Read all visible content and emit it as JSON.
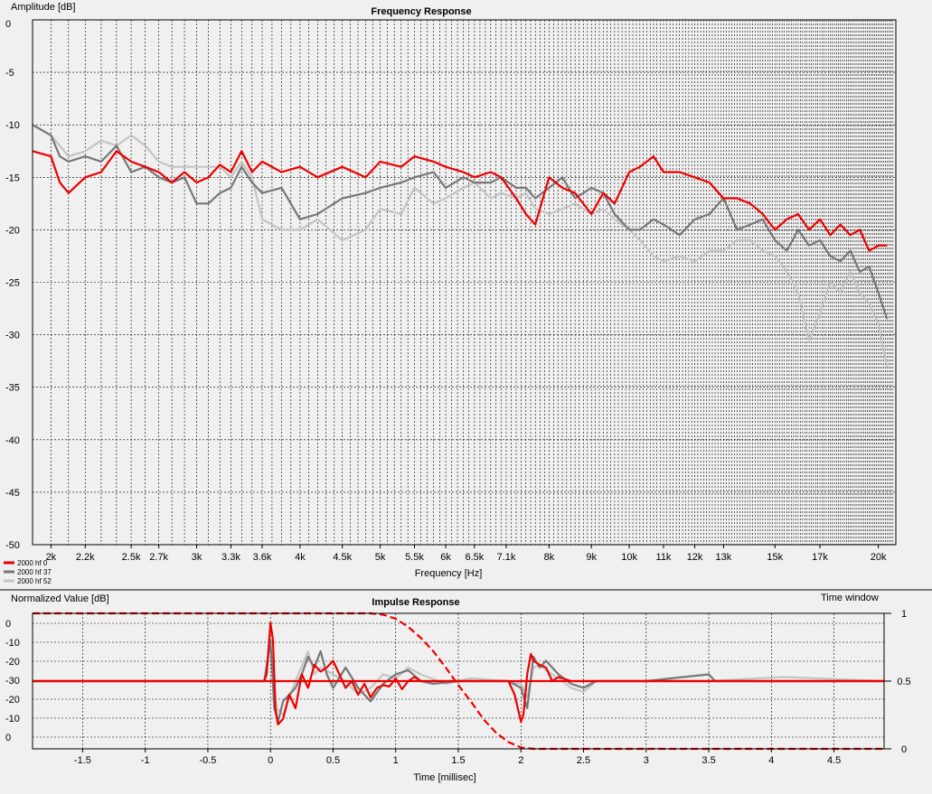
{
  "freq": {
    "title": "Frequency Response",
    "ylabel": "Amplitude [dB]",
    "xlabel": "Frequency [Hz]",
    "yticks": [
      "0",
      "-5",
      "-10",
      "-15",
      "-20",
      "-25",
      "-30",
      "-35",
      "-40",
      "-45",
      "-50"
    ],
    "xticks": [
      {
        "f": 2000,
        "label": "2k"
      },
      {
        "f": 2200,
        "label": "2.2k"
      },
      {
        "f": 2500,
        "label": "2.5k"
      },
      {
        "f": 2700,
        "label": "2.7k"
      },
      {
        "f": 3000,
        "label": "3k"
      },
      {
        "f": 3300,
        "label": "3.3k"
      },
      {
        "f": 3600,
        "label": "3.6k"
      },
      {
        "f": 4000,
        "label": "4k"
      },
      {
        "f": 4500,
        "label": "4.5k"
      },
      {
        "f": 5000,
        "label": "5k"
      },
      {
        "f": 5500,
        "label": "5.5k"
      },
      {
        "f": 6000,
        "label": "6k"
      },
      {
        "f": 6500,
        "label": "6.5k"
      },
      {
        "f": 7100,
        "label": "7.1k"
      },
      {
        "f": 8000,
        "label": "8k"
      },
      {
        "f": 9000,
        "label": "9k"
      },
      {
        "f": 10000,
        "label": "10k"
      },
      {
        "f": 11000,
        "label": "11k"
      },
      {
        "f": 12000,
        "label": "12k"
      },
      {
        "f": 13000,
        "label": "13k"
      },
      {
        "f": 15000,
        "label": "15k"
      },
      {
        "f": 17000,
        "label": "17k"
      },
      {
        "f": 20000,
        "label": "20k"
      }
    ],
    "legend": [
      "2000 hf 0",
      "2000 hf 37",
      "2000 hf 52"
    ]
  },
  "impulse": {
    "title": "Impulse Response",
    "ylabel": "Normalized Value [dB]",
    "right_label": "Time window",
    "xlabel": "Time [millisec]",
    "yticks": [
      "0",
      "-10",
      "-20",
      "-30",
      "-20",
      "-10",
      "0"
    ],
    "xticks": [
      "-1.5",
      "-1",
      "-0.5",
      "0",
      "0.5",
      "1",
      "1.5",
      "2",
      "2.5",
      "3",
      "3.5",
      "4",
      "4.5"
    ],
    "right_ticks": [
      "1",
      "0.5",
      "0"
    ]
  },
  "chart_data": [
    {
      "type": "line",
      "title": "Frequency Response",
      "xlabel": "Frequency [Hz]",
      "ylabel": "Amplitude [dB]",
      "xscale": "log",
      "xlim": [
        1900,
        21000
      ],
      "ylim": [
        -50,
        0
      ],
      "grid": true,
      "legend_position": "bottom-left",
      "series": [
        {
          "name": "2000 hf 0",
          "color": "#ee0000",
          "x": [
            1900,
            2000,
            2050,
            2100,
            2200,
            2300,
            2400,
            2500,
            2600,
            2700,
            2800,
            2900,
            3000,
            3100,
            3200,
            3300,
            3400,
            3500,
            3600,
            3800,
            4000,
            4200,
            4500,
            4800,
            5000,
            5300,
            5500,
            5800,
            6000,
            6300,
            6500,
            6800,
            7000,
            7300,
            7500,
            7700,
            8000,
            8300,
            8600,
            9000,
            9300,
            9600,
            10000,
            10300,
            10700,
            11000,
            11500,
            12000,
            12500,
            13000,
            13500,
            14000,
            14500,
            15000,
            15500,
            16000,
            16500,
            17000,
            17500,
            18000,
            18500,
            19000,
            19500,
            20000,
            20500
          ],
          "y": [
            -12.5,
            -13,
            -15.5,
            -16.5,
            -15,
            -14.5,
            -12.5,
            -13.5,
            -14,
            -14.5,
            -15.5,
            -14.5,
            -15.5,
            -15,
            -13.8,
            -14.5,
            -12.5,
            -14.5,
            -13.5,
            -14.5,
            -14,
            -15,
            -14,
            -15,
            -13.5,
            -14,
            -13,
            -13.5,
            -14,
            -14.5,
            -15,
            -14.5,
            -15,
            -17,
            -18.5,
            -19.5,
            -15,
            -16,
            -16.5,
            -18.5,
            -16.5,
            -17.5,
            -14.5,
            -14,
            -13,
            -14.5,
            -14.5,
            -15,
            -15.5,
            -17,
            -17,
            -17.5,
            -18.5,
            -20,
            -19,
            -18.5,
            -20,
            -19,
            -20.5,
            -19.5,
            -20.5,
            -20,
            -22,
            -21.5,
            -21.5
          ]
        },
        {
          "name": "2000 hf 37",
          "color": "#777777",
          "x": [
            1900,
            2000,
            2050,
            2100,
            2200,
            2300,
            2400,
            2500,
            2600,
            2700,
            2800,
            2900,
            3000,
            3100,
            3200,
            3300,
            3400,
            3500,
            3600,
            3800,
            4000,
            4200,
            4500,
            4800,
            5000,
            5300,
            5500,
            5800,
            6000,
            6300,
            6500,
            6800,
            7000,
            7300,
            7500,
            7700,
            8000,
            8300,
            8600,
            9000,
            9300,
            9600,
            10000,
            10300,
            10700,
            11000,
            11500,
            12000,
            12500,
            13000,
            13500,
            14000,
            14500,
            15000,
            15500,
            16000,
            16500,
            17000,
            17500,
            18000,
            18500,
            19000,
            19500,
            20000,
            20500
          ],
          "y": [
            -10,
            -11,
            -13,
            -13.5,
            -13,
            -13.5,
            -12,
            -14.5,
            -14,
            -15,
            -15.5,
            -15,
            -17.5,
            -17.5,
            -16.5,
            -16,
            -14,
            -15.5,
            -16.5,
            -16,
            -19,
            -18.5,
            -17,
            -16.5,
            -16,
            -15.5,
            -15,
            -14.5,
            -16,
            -15,
            -15.5,
            -15.5,
            -15,
            -16,
            -16,
            -17,
            -16,
            -15,
            -17,
            -16,
            -16.5,
            -18.5,
            -20,
            -20,
            -19,
            -19.5,
            -20.5,
            -19,
            -18.5,
            -17,
            -20,
            -19.5,
            -19,
            -21,
            -22,
            -20,
            -21.5,
            -21,
            -22.5,
            -23,
            -22,
            -24,
            -23.5,
            -26,
            -28.5
          ]
        },
        {
          "name": "2000 hf 52",
          "color": "#c4c4c4",
          "x": [
            1900,
            2000,
            2050,
            2100,
            2200,
            2300,
            2400,
            2500,
            2600,
            2700,
            2800,
            2900,
            3000,
            3100,
            3200,
            3300,
            3400,
            3500,
            3600,
            3800,
            4000,
            4200,
            4500,
            4800,
            5000,
            5300,
            5500,
            5800,
            6000,
            6300,
            6500,
            6800,
            7000,
            7300,
            7500,
            7700,
            8000,
            8300,
            8600,
            9000,
            9300,
            9600,
            10000,
            10300,
            10700,
            11000,
            11500,
            12000,
            12500,
            13000,
            13500,
            14000,
            14500,
            15000,
            15500,
            16000,
            16500,
            17000,
            17500,
            18000,
            18500,
            19000,
            19500,
            20000,
            20500
          ],
          "y": [
            -10,
            -11,
            -12,
            -13,
            -12.5,
            -11.5,
            -12,
            -11,
            -12,
            -13.5,
            -14,
            -14,
            -14,
            -14,
            -14,
            -15,
            -13.5,
            -15,
            -19,
            -20,
            -20,
            -19,
            -21,
            -20,
            -18,
            -18.5,
            -16,
            -17.5,
            -17,
            -16,
            -15.5,
            -17,
            -16.5,
            -17,
            -16.5,
            -18,
            -18.5,
            -18,
            -17.5,
            -18.5,
            -18,
            -19,
            -20,
            -21,
            -22.5,
            -23,
            -22.5,
            -23,
            -22,
            -22,
            -21,
            -21,
            -22,
            -22.5,
            -24,
            -26,
            -30.5,
            -28,
            -25,
            -26,
            -24,
            -26,
            -27,
            -29,
            -33
          ]
        }
      ]
    },
    {
      "type": "line",
      "title": "Impulse Response",
      "xlabel": "Time [millisec]",
      "ylabel": "Normalized Value [dB]",
      "xlim": [
        -1.9,
        4.9
      ],
      "grid": true,
      "series": [
        {
          "color": "#ee0000",
          "x": [
            -1.9,
            -0.05,
            -0.03,
            0,
            0.02,
            0.04,
            0.06,
            0.1,
            0.15,
            0.2,
            0.25,
            0.3,
            0.35,
            0.4,
            0.45,
            0.5,
            0.55,
            0.6,
            0.65,
            0.7,
            0.75,
            0.8,
            0.85,
            0.9,
            0.95,
            1.0,
            1.05,
            1.1,
            1.15,
            1.2,
            1.3,
            1.5,
            1.9,
            1.95,
            2.0,
            2.02,
            2.05,
            2.08,
            2.1,
            2.15,
            2.2,
            2.25,
            2.3,
            2.4,
            2.5,
            2.7,
            3.0,
            4.9
          ],
          "y": [
            0.5,
            0.5,
            0.55,
            0.93,
            0.8,
            0.3,
            0.18,
            0.22,
            0.4,
            0.3,
            0.55,
            0.45,
            0.62,
            0.57,
            0.6,
            0.65,
            0.55,
            0.45,
            0.5,
            0.4,
            0.48,
            0.38,
            0.45,
            0.47,
            0.46,
            0.52,
            0.44,
            0.5,
            0.53,
            0.5,
            0.5,
            0.5,
            0.5,
            0.4,
            0.2,
            0.25,
            0.55,
            0.7,
            0.65,
            0.62,
            0.6,
            0.5,
            0.53,
            0.5,
            0.5,
            0.5,
            0.5,
            0.5
          ]
        },
        {
          "color": "#777777",
          "x": [
            -1.9,
            -0.05,
            0,
            0.03,
            0.06,
            0.1,
            0.15,
            0.2,
            0.25,
            0.3,
            0.35,
            0.4,
            0.45,
            0.5,
            0.6,
            0.7,
            0.8,
            0.9,
            1.0,
            1.1,
            1.2,
            1.3,
            1.5,
            1.9,
            2.0,
            2.05,
            2.1,
            2.15,
            2.2,
            2.3,
            2.4,
            2.5,
            2.6,
            2.8,
            3.0,
            3.5,
            3.55,
            4.9
          ],
          "y": [
            0.5,
            0.5,
            0.8,
            0.3,
            0.2,
            0.35,
            0.4,
            0.45,
            0.55,
            0.68,
            0.6,
            0.72,
            0.55,
            0.45,
            0.6,
            0.45,
            0.35,
            0.48,
            0.55,
            0.58,
            0.5,
            0.48,
            0.5,
            0.5,
            0.45,
            0.3,
            0.68,
            0.6,
            0.65,
            0.55,
            0.48,
            0.45,
            0.5,
            0.5,
            0.5,
            0.55,
            0.5,
            0.5
          ]
        },
        {
          "color": "#c4c4c4",
          "x": [
            -1.9,
            -0.05,
            0,
            0.05,
            0.1,
            0.2,
            0.3,
            0.35,
            0.4,
            0.5,
            0.6,
            0.7,
            0.8,
            0.9,
            1.0,
            1.1,
            1.2,
            1.4,
            1.6,
            1.9,
            2.0,
            2.05,
            2.1,
            2.15,
            2.2,
            2.3,
            2.4,
            2.5,
            2.6,
            2.8,
            3.0,
            3.5,
            4.1,
            4.9
          ],
          "y": [
            0.5,
            0.5,
            0.75,
            0.3,
            0.25,
            0.5,
            0.72,
            0.55,
            0.6,
            0.55,
            0.5,
            0.4,
            0.45,
            0.55,
            0.52,
            0.6,
            0.55,
            0.48,
            0.52,
            0.5,
            0.48,
            0.38,
            0.6,
            0.62,
            0.58,
            0.52,
            0.45,
            0.42,
            0.5,
            0.5,
            0.5,
            0.5,
            0.53,
            0.5
          ]
        },
        {
          "name": "Time window",
          "color": "#ee0000",
          "style": "dashed",
          "x": [
            -1.9,
            0.8,
            0.9,
            1.0,
            1.1,
            1.2,
            1.3,
            1.4,
            1.5,
            1.6,
            1.7,
            1.8,
            1.9,
            2.0,
            2.1,
            4.9
          ],
          "y": [
            1,
            1,
            0.99,
            0.96,
            0.9,
            0.82,
            0.72,
            0.6,
            0.47,
            0.35,
            0.22,
            0.12,
            0.05,
            0.01,
            0,
            0
          ]
        }
      ]
    }
  ]
}
